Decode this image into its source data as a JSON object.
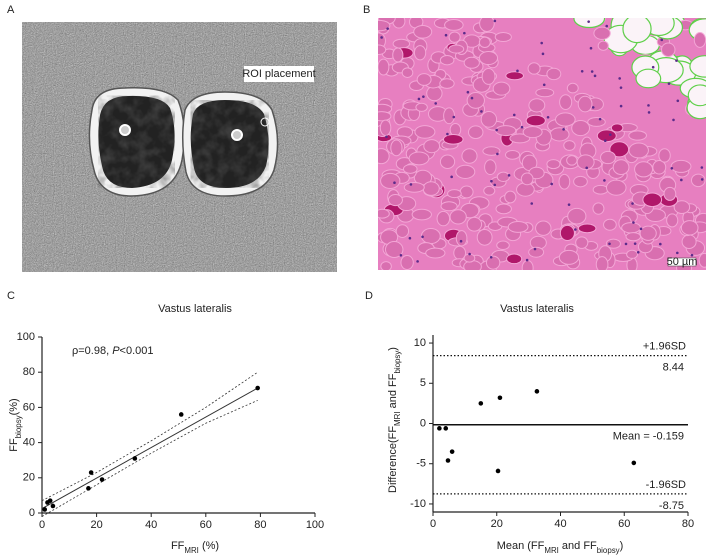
{
  "panel_labels": [
    "A",
    "B",
    "C",
    "D"
  ],
  "panel_a": {
    "annotation": "ROI placement"
  },
  "panel_b": {
    "scale_bar": "50 µm"
  },
  "chart_data": [
    {
      "type": "scatter",
      "title": "Vastus lateralis",
      "x_label": [
        {
          "t": "FF"
        },
        {
          "t": "MRI",
          "sub": true
        },
        {
          "t": " (%)"
        }
      ],
      "y_label": [
        {
          "t": "FF"
        },
        {
          "t": "biopsy",
          "sub": true
        },
        {
          "t": "(%)"
        }
      ],
      "annotation": [
        {
          "t": "ρ=0.98, "
        },
        {
          "t": "P",
          "italic": true
        },
        {
          "t": "<0.001"
        }
      ],
      "xlim": [
        0,
        100
      ],
      "ylim": [
        0,
        100
      ],
      "xticks": [
        0,
        20,
        40,
        60,
        80,
        100
      ],
      "yticks": [
        0,
        20,
        40,
        60,
        80,
        100
      ],
      "x": [
        1,
        2,
        3,
        4,
        17,
        18,
        22,
        34,
        51,
        79
      ],
      "y": [
        2,
        6,
        7,
        4,
        14,
        23,
        19,
        31,
        56,
        71
      ],
      "color": "#000000",
      "fit": {
        "x": [
          0,
          79
        ],
        "y": [
          2.5,
          71
        ]
      },
      "ci_upper": {
        "x": [
          0,
          20,
          40,
          60,
          79
        ],
        "y": [
          7,
          23,
          41,
          60,
          80
        ]
      },
      "ci_lower": {
        "x": [
          0,
          20,
          40,
          60,
          79
        ],
        "y": [
          -2,
          16,
          34,
          51,
          64
        ]
      }
    },
    {
      "type": "scatter",
      "title": "Vastus lateralis",
      "x_label": [
        {
          "t": "Mean (FF"
        },
        {
          "t": "MRI",
          "sub": true
        },
        {
          "t": " and FF"
        },
        {
          "t": "biopsy",
          "sub": true
        },
        {
          "t": ")"
        }
      ],
      "y_label": [
        {
          "t": "Difference(FF"
        },
        {
          "t": "MRI",
          "sub": true
        },
        {
          "t": " and FF"
        },
        {
          "t": "biopsy",
          "sub": true
        },
        {
          "t": ")"
        }
      ],
      "xlim": [
        0,
        80
      ],
      "ylim": [
        -11,
        11
      ],
      "xticks": [
        0,
        20,
        40,
        60,
        80
      ],
      "yticks": [
        -10,
        -5,
        0,
        5,
        10
      ],
      "x": [
        2,
        4,
        4.7,
        6,
        15,
        20.4,
        21,
        32.6,
        63
      ],
      "y": [
        -0.6,
        -0.6,
        -4.6,
        -3.5,
        2.5,
        -5.9,
        3.2,
        4,
        -4.9
      ],
      "color": "#000000",
      "reference_lines": [
        {
          "name": "+1.96SD",
          "value": 8.44,
          "value_label": "8.44",
          "style": "dotted"
        },
        {
          "value": -0.159,
          "value_label": "Mean = -0.159",
          "style": "solid"
        },
        {
          "name": "-1.96SD",
          "value": -8.75,
          "value_label": "-8.75",
          "style": "dotted"
        }
      ]
    }
  ]
}
